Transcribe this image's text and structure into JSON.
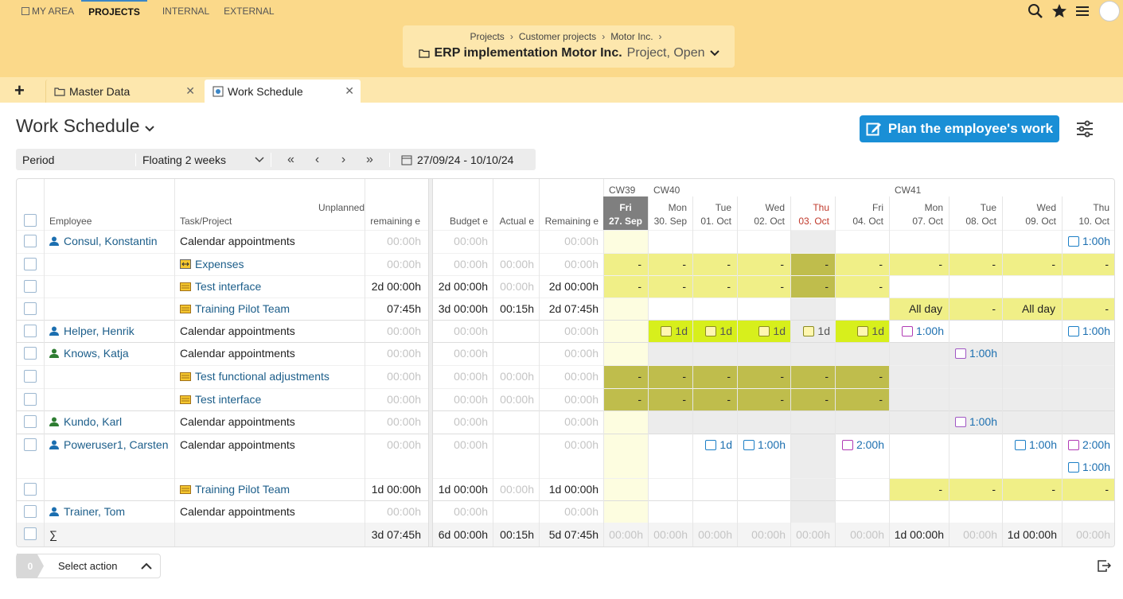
{
  "nav": {
    "items": [
      "MY AREA",
      "PROJECTS",
      "INTERNAL",
      "EXTERNAL"
    ],
    "active": "PROJECTS"
  },
  "breadcrumb": {
    "items": [
      "Projects",
      "Customer projects",
      "Motor Inc."
    ]
  },
  "project": {
    "title": "ERP implementation Motor Inc.",
    "status": "Project, Open"
  },
  "tabs": [
    {
      "label": "Master Data",
      "icon": "folder-icon"
    },
    {
      "label": "Work Schedule",
      "icon": "schedule-icon"
    }
  ],
  "page": {
    "title": "Work Schedule",
    "plan_button": "Plan the employee's work"
  },
  "period": {
    "label": "Period",
    "mode": "Floating 2 weeks",
    "range": "27/09/24 - 10/10/24"
  },
  "columns": {
    "employee": "Employee",
    "task": "Task/Project",
    "unplanned": [
      "Unplanned",
      "remaining e"
    ],
    "budget": "Budget e",
    "actual": "Actual e",
    "remaining": "Remaining e"
  },
  "weeks": [
    "CW39",
    "CW40",
    "CW41"
  ],
  "days": [
    {
      "dow": "Fri",
      "date": "27. Sep"
    },
    {
      "dow": "Mon",
      "date": "30. Sep"
    },
    {
      "dow": "Tue",
      "date": "01. Oct"
    },
    {
      "dow": "Wed",
      "date": "02. Oct"
    },
    {
      "dow": "Thu",
      "date": "03. Oct"
    },
    {
      "dow": "Fri",
      "date": "04. Oct"
    },
    {
      "dow": "Mon",
      "date": "07. Oct"
    },
    {
      "dow": "Tue",
      "date": "08. Oct"
    },
    {
      "dow": "Wed",
      "date": "09. Oct"
    },
    {
      "dow": "Thu",
      "date": "10. Oct"
    }
  ],
  "rows": [
    {
      "employee": "Consul, Konstantin",
      "task": "Calendar appointments",
      "unplanned": "00:00h",
      "budget": "00:00h",
      "actual": "",
      "remaining": "00:00h",
      "cells": [
        "",
        "",
        "",
        "",
        "",
        "",
        "",
        "",
        "",
        "1:00h"
      ]
    },
    {
      "employee": "",
      "task": "Expenses",
      "unplanned": "00:00h",
      "budget": "00:00h",
      "actual": "00:00h",
      "remaining": "00:00h",
      "cells": [
        "-",
        "-",
        "-",
        "-",
        "-",
        "-",
        "-",
        "-",
        "-",
        "-"
      ]
    },
    {
      "employee": "",
      "task": "Test interface",
      "unplanned": "2d 00:00h",
      "budget": "2d 00:00h",
      "actual": "00:00h",
      "remaining": "2d 00:00h",
      "cells": [
        "-",
        "-",
        "-",
        "-",
        "-",
        "-",
        "",
        "",
        "",
        ""
      ]
    },
    {
      "employee": "",
      "task": "Training Pilot Team",
      "unplanned": "07:45h",
      "budget": "3d 00:00h",
      "actual": "00:15h",
      "remaining": "2d 07:45h",
      "cells": [
        "",
        "",
        "",
        "",
        "",
        "",
        "All day",
        "-",
        "All day",
        "-"
      ]
    },
    {
      "employee": "Helper, Henrik",
      "task": "Calendar appointments",
      "unplanned": "00:00h",
      "budget": "00:00h",
      "actual": "",
      "remaining": "00:00h",
      "cells": [
        "",
        "1d",
        "1d",
        "1d",
        "1d",
        "1d",
        "1:00h",
        "",
        "",
        "1:00h"
      ]
    },
    {
      "employee": "Knows, Katja",
      "task": "Calendar appointments",
      "unplanned": "00:00h",
      "budget": "00:00h",
      "actual": "",
      "remaining": "00:00h",
      "cells": [
        "",
        "",
        "",
        "",
        "",
        "",
        "",
        "1:00h",
        "",
        ""
      ]
    },
    {
      "employee": "",
      "task": "Test functional adjustments",
      "unplanned": "00:00h",
      "budget": "00:00h",
      "actual": "00:00h",
      "remaining": "00:00h",
      "cells": [
        "-",
        "-",
        "-",
        "-",
        "-",
        "-",
        "",
        "",
        "",
        ""
      ]
    },
    {
      "employee": "",
      "task": "Test interface",
      "unplanned": "00:00h",
      "budget": "00:00h",
      "actual": "00:00h",
      "remaining": "00:00h",
      "cells": [
        "-",
        "-",
        "-",
        "-",
        "-",
        "-",
        "",
        "",
        "",
        ""
      ]
    },
    {
      "employee": "Kundo, Karl",
      "task": "Calendar appointments",
      "unplanned": "00:00h",
      "budget": "00:00h",
      "actual": "",
      "remaining": "00:00h",
      "cells": [
        "",
        "",
        "",
        "",
        "",
        "",
        "",
        "1:00h",
        "",
        ""
      ]
    },
    {
      "employee": "Poweruser1, Carsten",
      "task": "Calendar appointments",
      "unplanned": "00:00h",
      "budget": "00:00h",
      "actual": "",
      "remaining": "00:00h",
      "cells": [
        "",
        "",
        "1d",
        "1:00h",
        "",
        "2:00h",
        "",
        "",
        "1:00h",
        "2:00h"
      ],
      "extra": "1:00h"
    },
    {
      "employee": "",
      "task": "Training Pilot Team",
      "unplanned": "1d 00:00h",
      "budget": "1d 00:00h",
      "actual": "00:00h",
      "remaining": "1d 00:00h",
      "cells": [
        "",
        "",
        "",
        "",
        "",
        "",
        "-",
        "-",
        "-",
        "-"
      ]
    },
    {
      "employee": "Trainer, Tom",
      "task": "Calendar appointments",
      "unplanned": "00:00h",
      "budget": "00:00h",
      "actual": "",
      "remaining": "00:00h",
      "cells": [
        "",
        "",
        "",
        "",
        "",
        "",
        "",
        "",
        "",
        ""
      ]
    }
  ],
  "totals": {
    "symbol": "∑",
    "unplanned": "3d 07:45h",
    "budget": "6d 00:00h",
    "actual": "00:15h",
    "remaining": "5d 07:45h",
    "cells": [
      "00:00h",
      "00:00h",
      "00:00h",
      "00:00h",
      "00:00h",
      "00:00h",
      "1d 00:00h",
      "00:00h",
      "1d 00:00h",
      "00:00h"
    ]
  },
  "footer": {
    "count": "0",
    "action": "Select action"
  },
  "colors": {
    "topbar": "#fbd98a",
    "accent": "#1a8fd6",
    "plan_fill": "#f0ef87",
    "dark_fill": "#bfbd4c",
    "bright_fill": "#d7ef1c",
    "holiday_col": "#ececec",
    "today_col": "#fdfde0"
  }
}
